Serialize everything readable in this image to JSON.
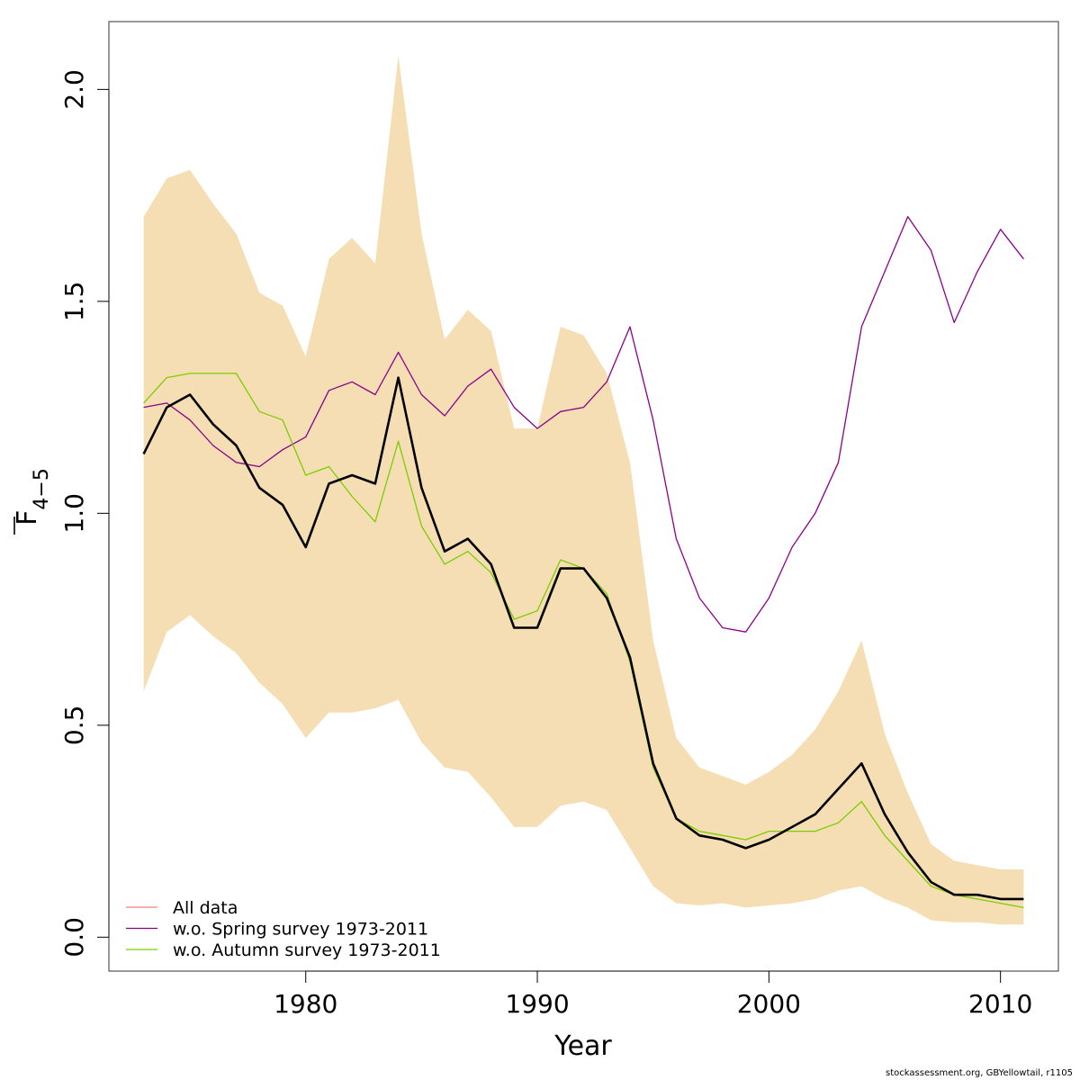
{
  "chart_data": {
    "type": "line",
    "title": "",
    "xlabel": "Year",
    "ylabel": "F",
    "ylabel_subscript": "4−5",
    "xlim": [
      1971.5,
      2012.5
    ],
    "ylim": [
      -0.08,
      2.16
    ],
    "x_ticks": [
      1980,
      1990,
      2000,
      2010
    ],
    "y_ticks": [
      0.0,
      0.5,
      1.0,
      1.5,
      2.0
    ],
    "x_tick_labels": [
      "1980",
      "1990",
      "2000",
      "2010"
    ],
    "y_tick_labels": [
      "0.0",
      "0.5",
      "1.0",
      "1.5",
      "2.0"
    ],
    "legend_position": "bottom-left",
    "x": [
      1973,
      1974,
      1975,
      1976,
      1977,
      1978,
      1979,
      1980,
      1981,
      1982,
      1983,
      1984,
      1985,
      1986,
      1987,
      1988,
      1989,
      1990,
      1991,
      1992,
      1993,
      1994,
      1995,
      1996,
      1997,
      1998,
      1999,
      2000,
      2001,
      2002,
      2003,
      2004,
      2005,
      2006,
      2007,
      2008,
      2009,
      2010,
      2011
    ],
    "band": {
      "color": "#f5deb3",
      "upper": [
        1.7,
        1.79,
        1.81,
        1.73,
        1.66,
        1.52,
        1.49,
        1.37,
        1.6,
        1.65,
        1.59,
        2.08,
        1.66,
        1.41,
        1.48,
        1.43,
        1.2,
        1.2,
        1.44,
        1.42,
        1.33,
        1.12,
        0.7,
        0.47,
        0.4,
        0.38,
        0.36,
        0.39,
        0.43,
        0.49,
        0.58,
        0.7,
        0.48,
        0.34,
        0.22,
        0.18,
        0.17,
        0.16,
        0.16
      ],
      "lower": [
        0.58,
        0.72,
        0.76,
        0.71,
        0.67,
        0.6,
        0.55,
        0.47,
        0.53,
        0.53,
        0.54,
        0.56,
        0.46,
        0.4,
        0.39,
        0.33,
        0.26,
        0.26,
        0.31,
        0.32,
        0.3,
        0.21,
        0.12,
        0.08,
        0.075,
        0.08,
        0.07,
        0.075,
        0.08,
        0.09,
        0.11,
        0.12,
        0.09,
        0.07,
        0.04,
        0.035,
        0.035,
        0.03,
        0.03
      ]
    },
    "series": [
      {
        "name": "All data",
        "color": "#000000",
        "legend_color": "#f08080",
        "width": 2.6,
        "values": [
          1.14,
          1.25,
          1.28,
          1.21,
          1.16,
          1.06,
          1.02,
          0.92,
          1.07,
          1.09,
          1.07,
          1.32,
          1.06,
          0.91,
          0.94,
          0.88,
          0.73,
          0.73,
          0.87,
          0.87,
          0.8,
          0.66,
          0.41,
          0.28,
          0.24,
          0.23,
          0.21,
          0.23,
          0.26,
          0.29,
          0.35,
          0.41,
          0.29,
          0.2,
          0.13,
          0.1,
          0.1,
          0.09,
          0.09
        ]
      },
      {
        "name": "w.o. Spring survey 1973-2011",
        "color": "#8b008b",
        "width": 1.3,
        "values": [
          1.25,
          1.26,
          1.22,
          1.16,
          1.12,
          1.11,
          1.15,
          1.18,
          1.29,
          1.31,
          1.28,
          1.38,
          1.28,
          1.23,
          1.3,
          1.34,
          1.25,
          1.2,
          1.24,
          1.25,
          1.31,
          1.44,
          1.22,
          0.94,
          0.8,
          0.73,
          0.72,
          0.8,
          0.92,
          1.0,
          1.12,
          1.44,
          1.57,
          1.7,
          1.62,
          1.45,
          1.57,
          1.67,
          1.6
        ]
      },
      {
        "name": "w.o. Autumn survey 1973-2011",
        "color": "#7ccd00",
        "width": 1.3,
        "values": [
          1.26,
          1.32,
          1.33,
          1.33,
          1.33,
          1.24,
          1.22,
          1.09,
          1.11,
          1.04,
          0.98,
          1.17,
          0.97,
          0.88,
          0.91,
          0.86,
          0.75,
          0.77,
          0.89,
          0.87,
          0.81,
          0.65,
          0.4,
          0.28,
          0.25,
          0.24,
          0.23,
          0.25,
          0.25,
          0.25,
          0.27,
          0.32,
          0.24,
          0.18,
          0.12,
          0.1,
          0.09,
          0.08,
          0.07
        ]
      }
    ]
  },
  "credit": "stockassessment.org, GBYellowtail, r1105"
}
